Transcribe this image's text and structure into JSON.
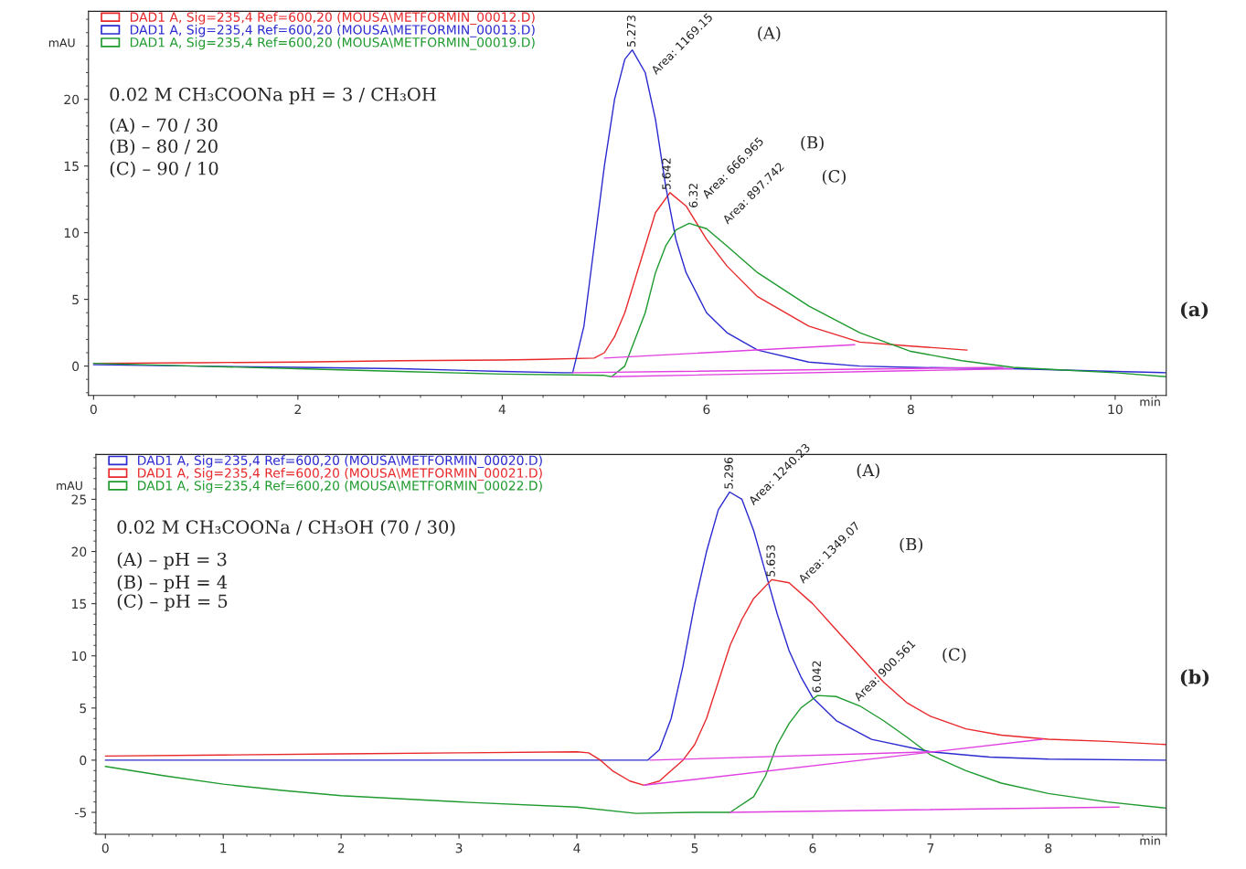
{
  "chart_data": [
    {
      "type": "line",
      "xlabel": "min",
      "ylabel": "mAU",
      "xlim": [
        -0.05,
        10.5
      ],
      "ylim": [
        -2.2,
        26.6
      ],
      "xticks": [
        0,
        2,
        4,
        6,
        8,
        10
      ],
      "yticks": [
        0,
        5,
        10,
        15,
        20
      ],
      "grid": false,
      "legend": "top left",
      "marker": "none",
      "line_style": "solid",
      "series": [
        {
          "name": "DAD1 A, Sig=235,4 Ref=600,20 (MOUSA\\METFORMIN_00012.D)",
          "color": "#e8282a",
          "x": [
            0,
            1,
            2,
            3,
            4,
            4.4,
            4.9,
            5.0,
            5.1,
            5.2,
            5.3,
            5.4,
            5.5,
            5.642,
            5.8,
            6.0,
            6.2,
            6.5,
            7.0,
            7.5,
            8.0,
            8.55
          ],
          "values": [
            0.2,
            0.25,
            0.3,
            0.4,
            0.45,
            0.5,
            0.6,
            1.0,
            2.2,
            4.0,
            6.5,
            9.0,
            11.5,
            13.0,
            12.0,
            9.5,
            7.5,
            5.2,
            3.0,
            1.8,
            1.5,
            1.2
          ]
        },
        {
          "name": "DAD1 A, Sig=235,4 Ref=600,20 (MOUSA\\METFORMIN_00013.D)",
          "color": "#2a2ad0",
          "x": [
            0,
            1,
            2,
            3,
            4,
            4.6,
            4.69,
            4.8,
            4.9,
            5.0,
            5.1,
            5.2,
            5.273,
            5.4,
            5.5,
            5.6,
            5.7,
            5.8,
            6.0,
            6.2,
            6.5,
            7.0,
            7.5,
            8.0,
            9.0,
            10.0,
            10.5
          ],
          "values": [
            0.1,
            0.0,
            -0.1,
            -0.2,
            -0.4,
            -0.5,
            -0.5,
            3,
            9,
            15,
            20,
            23,
            23.7,
            22,
            18.5,
            13.5,
            9.5,
            7,
            4,
            2.5,
            1.2,
            0.3,
            0.0,
            -0.1,
            -0.2,
            -0.4,
            -0.5
          ]
        },
        {
          "name": "DAD1 A, Sig=235,4 Ref=600,20 (MOUSA\\METFORMIN_00019.D)",
          "color": "#1e9a2e",
          "x": [
            0,
            1,
            2,
            3,
            4,
            5.0,
            5.07,
            5.2,
            5.4,
            5.5,
            5.6,
            5.7,
            5.83,
            6.0,
            6.2,
            6.5,
            7.0,
            7.5,
            8.0,
            8.5,
            9.0,
            9.5,
            10.0,
            10.5
          ],
          "values": [
            0.2,
            0.0,
            -0.2,
            -0.4,
            -0.6,
            -0.7,
            -0.8,
            0,
            4,
            7,
            9,
            10.2,
            10.7,
            10.3,
            9.0,
            7.0,
            4.5,
            2.5,
            1.1,
            0.4,
            -0.1,
            -0.3,
            -0.5,
            -0.8
          ]
        },
        {
          "color": "#e040e0",
          "x": [
            5.0,
            7.45
          ],
          "values": [
            0.6,
            1.6
          ]
        },
        {
          "color": "#e040e0",
          "x": [
            4.69,
            8.9
          ],
          "values": [
            -0.5,
            -0.1
          ]
        },
        {
          "color": "#e040e0",
          "x": [
            5.07,
            9.0
          ],
          "values": [
            -0.8,
            -0.2
          ]
        }
      ],
      "annotations": [
        {
          "text": "5.273",
          "x": 5.273,
          "y": 23.7
        },
        {
          "text": "5.642",
          "x": 5.642,
          "y": 13.0
        },
        {
          "text": "6.32",
          "x": 5.83,
          "y": 10.7
        },
        {
          "text": "Area: 1169.15",
          "x": 5.45,
          "y": 21.5
        },
        {
          "text": "Area: 666.965",
          "x": 5.75,
          "y": 12.0
        },
        {
          "text": "Area: 897.742",
          "x": 6.0,
          "y": 10.3
        },
        "(A)",
        "(B)",
        "(C)",
        "0.02 M CH₃COONa pH = 3 / CH₃OH",
        "(A) – 70 / 30",
        "(B) – 80 / 20",
        "(C) – 90 / 10",
        "(a)"
      ]
    },
    {
      "type": "line",
      "xlabel": "min",
      "ylabel": "mAU",
      "xlim": [
        -0.08,
        9.0
      ],
      "ylim": [
        -7.1,
        29.3
      ],
      "xticks": [
        0,
        1,
        2,
        3,
        4,
        5,
        6,
        7,
        8
      ],
      "yticks": [
        -5,
        0,
        5,
        10,
        15,
        20,
        25
      ],
      "grid": false,
      "legend": "top left",
      "marker": "none",
      "line_style": "solid",
      "series": [
        {
          "name": "DAD1 A, Sig=235,4 Ref=600,20 (MOUSA\\METFORMIN_00020.D)",
          "color": "#2a2ad0",
          "x": [
            0,
            1,
            2,
            3,
            4,
            4.6,
            4.7,
            4.8,
            4.9,
            5.0,
            5.1,
            5.2,
            5.296,
            5.4,
            5.5,
            5.6,
            5.7,
            5.8,
            5.9,
            6.0,
            6.2,
            6.5,
            7.0,
            7.5,
            8.0,
            9.0
          ],
          "values": [
            0,
            0,
            0,
            0,
            0,
            0,
            1,
            4,
            9,
            15,
            20,
            24,
            25.7,
            25,
            22,
            18,
            14,
            10.5,
            8,
            6,
            3.8,
            2.0,
            0.8,
            0.3,
            0.1,
            0.0
          ]
        },
        {
          "name": "DAD1 A, Sig=235,4 Ref=600,20 (MOUSA\\METFORMIN_00021.D)",
          "color": "#e8282a",
          "x": [
            0,
            1,
            2,
            3,
            4,
            4.1,
            4.2,
            4.3,
            4.45,
            4.57,
            4.7,
            4.8,
            4.9,
            5.0,
            5.1,
            5.2,
            5.3,
            5.4,
            5.5,
            5.653,
            5.8,
            6.0,
            6.2,
            6.4,
            6.6,
            6.8,
            7.0,
            7.3,
            7.6,
            8.0,
            8.5,
            9.0
          ],
          "values": [
            0.4,
            0.5,
            0.6,
            0.7,
            0.8,
            0.7,
            0,
            -1,
            -2,
            -2.4,
            -2,
            -1,
            0,
            1.5,
            4,
            7.5,
            11,
            13.5,
            15.5,
            17.3,
            17,
            15,
            12.5,
            10,
            7.5,
            5.5,
            4.2,
            3.0,
            2.4,
            2.0,
            1.8,
            1.5
          ]
        },
        {
          "name": "DAD1 A, Sig=235,4 Ref=600,20 (MOUSA\\METFORMIN_00022.D)",
          "color": "#1e9a2e",
          "x": [
            0,
            0.5,
            1,
            1.5,
            2,
            3,
            4,
            4.5,
            5.0,
            5.3,
            5.5,
            5.6,
            5.7,
            5.8,
            5.9,
            6.042,
            6.2,
            6.4,
            6.6,
            6.8,
            7.0,
            7.3,
            7.6,
            8.0,
            8.5,
            9.0
          ],
          "values": [
            -0.6,
            -1.5,
            -2.3,
            -2.9,
            -3.4,
            -4.0,
            -4.5,
            -5.1,
            -5.0,
            -5.0,
            -3.5,
            -1.5,
            1.5,
            3.5,
            5,
            6.2,
            6.1,
            5.2,
            3.8,
            2.2,
            0.5,
            -1,
            -2.2,
            -3.2,
            -4.0,
            -4.6
          ]
        },
        {
          "color": "#e040e0",
          "x": [
            4.57,
            7.95
          ],
          "values": [
            -2.4,
            2.0
          ]
        },
        {
          "color": "#e040e0",
          "x": [
            4.62,
            7.0
          ],
          "values": [
            0.0,
            0.8
          ]
        },
        {
          "color": "#e040e0",
          "x": [
            5.3,
            8.6
          ],
          "values": [
            -5.0,
            -4.5
          ]
        }
      ],
      "annotations": [
        {
          "text": "5.296",
          "x": 5.296,
          "y": 25.7
        },
        {
          "text": "5.653",
          "x": 5.653,
          "y": 17.3
        },
        {
          "text": "6.042",
          "x": 6.042,
          "y": 6.2
        },
        {
          "text": "Area: 1240.23",
          "x": 5.45,
          "y": 24.0
        },
        {
          "text": "Area: 1349.07",
          "x": 5.85,
          "y": 16.5
        },
        {
          "text": "Area: 900.561",
          "x": 6.3,
          "y": 5.2
        },
        "(A)",
        "(B)",
        "(C)",
        "0.02 M CH₃COONa / CH₃OH (70 / 30)",
        "(A) – pH = 3",
        "(B) – pH = 4",
        "(C) – pH = 5",
        "(b)"
      ]
    }
  ]
}
